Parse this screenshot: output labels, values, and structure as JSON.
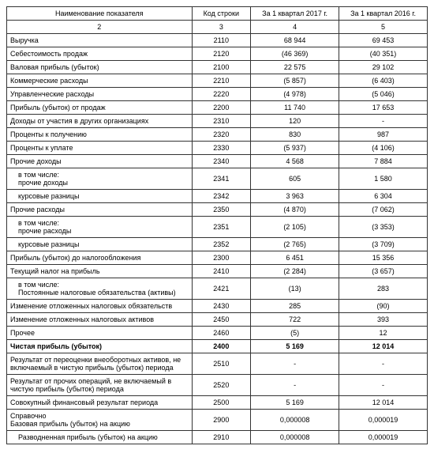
{
  "table": {
    "headers": {
      "name": "Наименование показателя",
      "code": "Код строки",
      "v1": "За 1 квартал 2017 г.",
      "v2": "За 1 квартал 2016 г."
    },
    "colnums": {
      "name": "2",
      "code": "3",
      "v1": "4",
      "v2": "5"
    },
    "rows": [
      {
        "name": "Выручка",
        "code": "2110",
        "v1": "68 944",
        "v2": "69 453"
      },
      {
        "name": "Себестоимость продаж",
        "code": "2120",
        "v1": "(46 369)",
        "v2": "(40 351)"
      },
      {
        "name": "Валовая прибыль (убыток)",
        "code": "2100",
        "v1": "22 575",
        "v2": "29 102"
      },
      {
        "name": "Коммерческие расходы",
        "code": "2210",
        "v1": "(5 857)",
        "v2": "(6 403)"
      },
      {
        "name": "Управленческие расходы",
        "code": "2220",
        "v1": "(4 978)",
        "v2": "(5 046)"
      },
      {
        "name": "Прибыль (убыток) от продаж",
        "code": "2200",
        "v1": "11 740",
        "v2": "17 653"
      },
      {
        "name": "Доходы от участия в других организациях",
        "code": "2310",
        "v1": "120",
        "v2": "-"
      },
      {
        "name": "Проценты к получению",
        "code": "2320",
        "v1": "830",
        "v2": "987"
      },
      {
        "name": "Проценты к уплате",
        "code": "2330",
        "v1": "(5 937)",
        "v2": "(4 106)"
      },
      {
        "name": "Прочие доходы",
        "code": "2340",
        "v1": "4 568",
        "v2": "7 884"
      },
      {
        "name": "в том числе:\nпрочие доходы",
        "code": "2341",
        "v1": "605",
        "v2": "1 580",
        "indent": true
      },
      {
        "name": "курсовые разницы",
        "code": "2342",
        "v1": "3 963",
        "v2": "6 304",
        "indent": true
      },
      {
        "name": "Прочие расходы",
        "code": "2350",
        "v1": "(4 870)",
        "v2": "(7 062)"
      },
      {
        "name": "в том числе:\nпрочие расходы",
        "code": "2351",
        "v1": "(2 105)",
        "v2": "(3 353)",
        "indent": true
      },
      {
        "name": "курсовые разницы",
        "code": "2352",
        "v1": "(2 765)",
        "v2": "(3 709)",
        "indent": true
      },
      {
        "name": "Прибыль (убыток) до налогообложения",
        "code": "2300",
        "v1": "6 451",
        "v2": "15 356"
      },
      {
        "name": "Текущий налог на прибыль",
        "code": "2410",
        "v1": "(2 284)",
        "v2": "(3 657)"
      },
      {
        "name": "в том числе:\nПостоянные налоговые обязательства (активы)",
        "code": "2421",
        "v1": "(13)",
        "v2": "283",
        "indent": true
      },
      {
        "name": "Изменение отложенных налоговых обязательств",
        "code": "2430",
        "v1": "285",
        "v2": "(90)"
      },
      {
        "name": "Изменение отложенных налоговых активов",
        "code": "2450",
        "v1": "722",
        "v2": "393"
      },
      {
        "name": "Прочее",
        "code": "2460",
        "v1": "(5)",
        "v2": "12"
      },
      {
        "name": "Чистая прибыль (убыток)",
        "code": "2400",
        "v1": "5 169",
        "v2": "12 014",
        "bold": true
      },
      {
        "name": "Результат от переоценки внеоборотных активов, не включаемый в чистую прибыль (убыток) периода",
        "code": "2510",
        "v1": "-",
        "v2": "-"
      },
      {
        "name": "Результат от прочих операций, не включаемый в чистую прибыль (убыток) периода",
        "code": "2520",
        "v1": "-",
        "v2": "-"
      },
      {
        "name": "Совокупный финансовый результат периода",
        "code": "2500",
        "v1": "5 169",
        "v2": "12 014"
      },
      {
        "name": "Справочно\nБазовая прибыль (убыток) на акцию",
        "code": "2900",
        "v1": "0,000008",
        "v2": "0,000019"
      },
      {
        "name": "Разводненная прибыль (убыток) на акцию",
        "code": "2910",
        "v1": "0,000008",
        "v2": "0,000019",
        "indent": true
      }
    ]
  },
  "style": {
    "font_family": "Arial, sans-serif",
    "font_size_pt": 9,
    "border_color": "#333333",
    "text_color": "#000000",
    "background_color": "#ffffff",
    "col_widths_pct": [
      44,
      14,
      21,
      21
    ]
  }
}
